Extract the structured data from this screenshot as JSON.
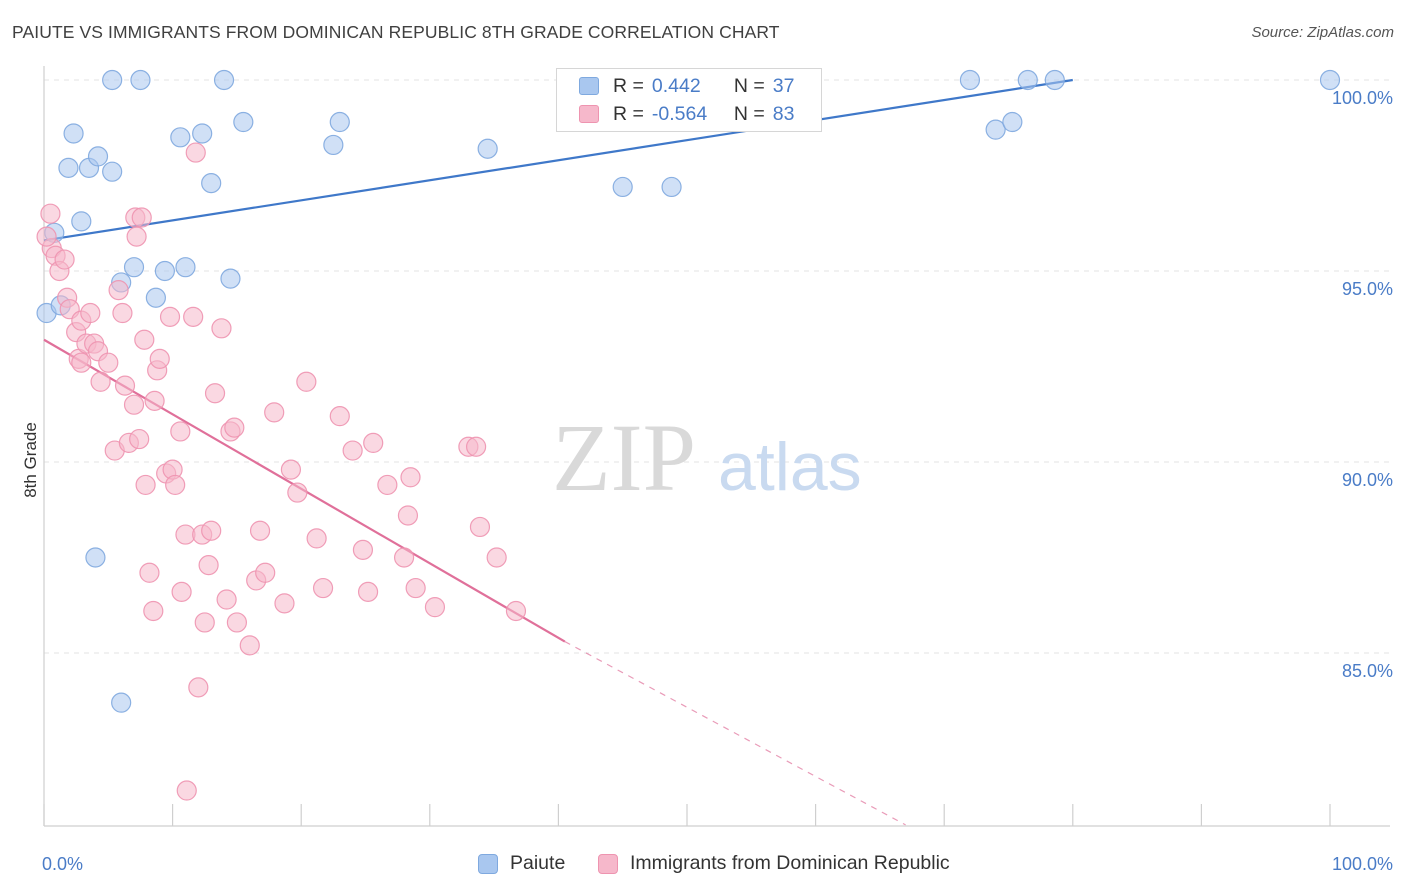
{
  "title": "PAIUTE VS IMMIGRANTS FROM DOMINICAN REPUBLIC 8TH GRADE CORRELATION CHART",
  "source": "Source: ZipAtlas.com",
  "watermark": {
    "zip": "ZIP",
    "atlas": "atlas"
  },
  "colors": {
    "blue_fill": "#a9c7ef",
    "blue_stroke": "#7fa9df",
    "blue_line": "#3f78c9",
    "pink_fill": "#f6b8cb",
    "pink_stroke": "#ee94b0",
    "pink_line": "#e0709a",
    "label_blue": "#4a7cc7",
    "grid": "#e3e3e3"
  },
  "legend": {
    "rows": [
      {
        "series": "Paiute",
        "r_label": "R =",
        "r_value": "0.442",
        "n_label": "N =",
        "n_value": "37"
      },
      {
        "series": "Immigrants from Dominican Republic",
        "r_label": "R =",
        "r_value": "-0.564",
        "n_label": "N =",
        "n_value": "83"
      }
    ]
  },
  "chart_data": {
    "type": "scatter",
    "title": "PAIUTE VS IMMIGRANTS FROM DOMINICAN REPUBLIC 8TH GRADE CORRELATION CHART",
    "xlabel": "",
    "ylabel": "8th Grade",
    "xlim": [
      0,
      100
    ],
    "ylim": [
      80.5,
      100.7
    ],
    "x_tick_labels": [
      "0.0%",
      "100.0%"
    ],
    "y_ticks": [
      85,
      90,
      95,
      100
    ],
    "y_tick_labels": [
      "85.0%",
      "90.0%",
      "95.0%",
      "100.0%"
    ],
    "grid": true,
    "legend_position": "top-center",
    "series": [
      {
        "name": "Paiute",
        "color": "#a9c7ef",
        "trend": {
          "x": [
            0,
            80
          ],
          "y": [
            95.8,
            100.0
          ],
          "style": "solid"
        },
        "points": [
          [
            0.2,
            93.9
          ],
          [
            0.8,
            96.0
          ],
          [
            1.3,
            94.1
          ],
          [
            1.9,
            97.7
          ],
          [
            2.3,
            98.6
          ],
          [
            2.9,
            96.3
          ],
          [
            3.5,
            97.7
          ],
          [
            4.2,
            98.0
          ],
          [
            5.3,
            100.0
          ],
          [
            5.3,
            97.6
          ],
          [
            6.0,
            94.7
          ],
          [
            7.5,
            100.0
          ],
          [
            7.0,
            95.1
          ],
          [
            8.7,
            94.3
          ],
          [
            9.4,
            95.0
          ],
          [
            10.6,
            98.5
          ],
          [
            11.0,
            95.1
          ],
          [
            12.3,
            98.6
          ],
          [
            13.0,
            97.3
          ],
          [
            14.0,
            100.0
          ],
          [
            14.5,
            94.8
          ],
          [
            15.5,
            98.9
          ],
          [
            22.5,
            98.3
          ],
          [
            23.0,
            98.9
          ],
          [
            34.5,
            98.2
          ],
          [
            45.0,
            97.2
          ],
          [
            48.8,
            97.2
          ],
          [
            45.7,
            100.0
          ],
          [
            45.7,
            99.9
          ],
          [
            72.0,
            100.0
          ],
          [
            74.0,
            98.7
          ],
          [
            75.3,
            98.9
          ],
          [
            76.5,
            100.0
          ],
          [
            78.6,
            100.0
          ],
          [
            100.0,
            100.0
          ],
          [
            4.0,
            87.5
          ],
          [
            6.0,
            83.7
          ]
        ]
      },
      {
        "name": "Immigrants from Dominican Republic",
        "color": "#f6b8cb",
        "trend": {
          "x": [
            0,
            40.5
          ],
          "y": [
            93.2,
            85.3
          ],
          "style": "solid",
          "extension": {
            "x": [
              40.5,
              67.0
            ],
            "y": [
              85.3,
              80.5
            ],
            "style": "dashed"
          }
        },
        "points": [
          [
            0.5,
            96.5
          ],
          [
            0.6,
            95.6
          ],
          [
            0.9,
            95.4
          ],
          [
            1.2,
            95.0
          ],
          [
            1.6,
            95.3
          ],
          [
            0.2,
            95.9
          ],
          [
            1.8,
            94.3
          ],
          [
            2.0,
            94.0
          ],
          [
            2.5,
            93.4
          ],
          [
            2.7,
            92.7
          ],
          [
            2.9,
            93.7
          ],
          [
            3.3,
            93.1
          ],
          [
            3.6,
            93.9
          ],
          [
            3.9,
            93.1
          ],
          [
            4.2,
            92.9
          ],
          [
            4.4,
            92.1
          ],
          [
            5.0,
            92.6
          ],
          [
            5.5,
            90.3
          ],
          [
            5.8,
            94.5
          ],
          [
            6.1,
            93.9
          ],
          [
            6.3,
            92.0
          ],
          [
            6.6,
            90.5
          ],
          [
            7.1,
            96.4
          ],
          [
            7.2,
            95.9
          ],
          [
            7.0,
            91.5
          ],
          [
            7.4,
            90.6
          ],
          [
            7.6,
            96.4
          ],
          [
            7.8,
            93.2
          ],
          [
            7.9,
            89.4
          ],
          [
            8.2,
            87.1
          ],
          [
            8.5,
            86.1
          ],
          [
            8.6,
            91.6
          ],
          [
            8.8,
            92.4
          ],
          [
            9.0,
            92.7
          ],
          [
            9.5,
            89.7
          ],
          [
            9.8,
            93.8
          ],
          [
            10.0,
            89.8
          ],
          [
            10.2,
            89.4
          ],
          [
            10.6,
            90.8
          ],
          [
            10.7,
            86.6
          ],
          [
            11.0,
            88.1
          ],
          [
            11.6,
            93.8
          ],
          [
            11.8,
            98.1
          ],
          [
            12.0,
            84.1
          ],
          [
            12.3,
            88.1
          ],
          [
            12.5,
            85.8
          ],
          [
            12.8,
            87.3
          ],
          [
            13.0,
            88.2
          ],
          [
            13.3,
            91.8
          ],
          [
            13.8,
            93.5
          ],
          [
            14.2,
            86.4
          ],
          [
            14.5,
            90.8
          ],
          [
            14.8,
            90.9
          ],
          [
            15.0,
            85.8
          ],
          [
            16.0,
            85.2
          ],
          [
            16.5,
            86.9
          ],
          [
            16.8,
            88.2
          ],
          [
            17.2,
            87.1
          ],
          [
            17.9,
            91.3
          ],
          [
            18.7,
            86.3
          ],
          [
            19.2,
            89.8
          ],
          [
            19.7,
            89.2
          ],
          [
            20.4,
            92.1
          ],
          [
            21.2,
            88.0
          ],
          [
            21.7,
            86.7
          ],
          [
            23.0,
            91.2
          ],
          [
            24.0,
            90.3
          ],
          [
            24.8,
            87.7
          ],
          [
            25.2,
            86.6
          ],
          [
            25.6,
            90.5
          ],
          [
            26.7,
            89.4
          ],
          [
            28.0,
            87.5
          ],
          [
            28.3,
            88.6
          ],
          [
            28.5,
            89.6
          ],
          [
            28.9,
            86.7
          ],
          [
            30.4,
            86.2
          ],
          [
            33.0,
            90.4
          ],
          [
            33.6,
            90.4
          ],
          [
            33.9,
            88.3
          ],
          [
            35.2,
            87.5
          ],
          [
            36.7,
            86.1
          ],
          [
            11.1,
            81.4
          ],
          [
            2.9,
            92.6
          ]
        ]
      }
    ]
  },
  "bottom_legend": [
    {
      "label": "Paiute"
    },
    {
      "label": "Immigrants from Dominican Republic"
    }
  ]
}
